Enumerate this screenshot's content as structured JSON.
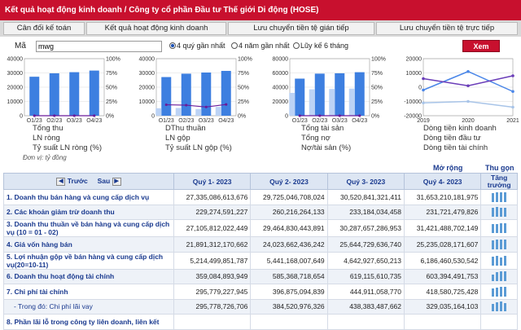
{
  "title": "Kết quả hoạt động kinh doanh / Công ty cổ phần Đầu tư Thế giới Di động (HOSE)",
  "tabs": [
    "Cân đối kế toán",
    "Kết quả hoạt động kinh doanh",
    "Lưu chuyển tiền tệ gián tiếp",
    "Lưu chuyển tiền tệ trực tiếp"
  ],
  "filter": {
    "label": "Mã",
    "code": "mwg",
    "options": [
      "4 quý gần nhất",
      "4 năm gần nhất",
      "Lũy kế 6 tháng"
    ],
    "selected": 0,
    "button": "Xem"
  },
  "charts": [
    {
      "legend": [
        "Tổng thu",
        "LN ròng",
        "Tỷ suất LN ròng (%)"
      ],
      "y_left": [
        "40000",
        "30000",
        "20000",
        "10000",
        "0"
      ],
      "y_right": [
        "100%",
        "75%",
        "50%",
        "25%",
        "0%"
      ],
      "x": [
        "Q1/23",
        "Q2/23",
        "Q3/23",
        "Q4/23"
      ],
      "bars": [
        27335,
        29725,
        30520,
        31653
      ],
      "bars2": [
        0,
        0,
        0,
        0
      ],
      "line": [
        0,
        0,
        0,
        0
      ]
    },
    {
      "legend": [
        "DThu thuần",
        "LN gộp",
        "Tỷ suất LN gộp (%)"
      ],
      "y_left": [
        "40000",
        "30000",
        "20000",
        "10000",
        "0"
      ],
      "y_right": [
        "100%",
        "75%",
        "50%",
        "25%",
        "0%"
      ],
      "x": [
        "Q1/23",
        "Q2/23",
        "Q3/23",
        "Q4/23"
      ],
      "bars": [
        27106,
        29465,
        30288,
        31421
      ],
      "bars2": [
        5214,
        5441,
        4643,
        6186
      ],
      "line": [
        19.2,
        18.5,
        15.3,
        19.7
      ]
    },
    {
      "legend": [
        "Tổng tài sản",
        "Tổng nợ",
        "Nợ/tài sản (%)"
      ],
      "y_left": [
        "80000",
        "60000",
        "40000",
        "20000",
        "0"
      ],
      "y_right": [
        "100%",
        "75%",
        "50%",
        "25%",
        "0%"
      ],
      "x": [
        "Q1/23",
        "Q2/23",
        "Q3/23",
        "Q4/23"
      ],
      "bars": [
        52000,
        59000,
        59500,
        61000
      ],
      "bars2": [
        32000,
        37000,
        37500,
        38000
      ],
      "line": [
        0,
        0,
        0,
        0
      ]
    },
    {
      "legend": [
        "Dòng tiền kinh doanh",
        "Dòng tiền đầu tư",
        "Dòng tiền tài chính"
      ],
      "y_left": [
        "20000",
        "10000",
        "0",
        "-10000",
        "-20000"
      ],
      "x": [
        "2019",
        "2020",
        "2021"
      ],
      "series": [
        [
          -2000,
          11000,
          -3000
        ],
        [
          6000,
          1000,
          8000
        ],
        [
          -11000,
          -10000,
          -14000
        ]
      ],
      "colors": [
        "#4a86e8",
        "#6a3db8",
        "#a8c4e8"
      ]
    }
  ],
  "unit_note": "Đơn vị: tỷ đồng",
  "expand": "Mở rộng",
  "growth": "Thu gọn",
  "table": {
    "nav_prev": "Trước",
    "nav_next": "Sau",
    "headers": [
      "Quý 1- 2023",
      "Quý 2- 2023",
      "Quý 3- 2023",
      "Quý 4- 2023",
      "Tăng trưởng"
    ],
    "rows": [
      {
        "name": "1. Doanh thu bán hàng và cung cấp dịch vụ",
        "values": [
          "27,335,086,613,676",
          "29,725,046,708,024",
          "30,520,841,321,411",
          "31,653,210,181,975"
        ],
        "sub": false
      },
      {
        "name": "2. Các khoản giảm trừ doanh thu",
        "values": [
          "229,274,591,227",
          "260,216,264,133",
          "233,184,034,458",
          "231,721,479,826"
        ],
        "sub": false
      },
      {
        "name": "3. Doanh thu thuần về bán hàng và cung cấp dịch vụ (10 = 01 - 02)",
        "values": [
          "27,105,812,022,449",
          "29,464,830,443,891",
          "30,287,657,286,953",
          "31,421,488,702,149"
        ],
        "sub": false
      },
      {
        "name": "4. Giá vốn hàng bán",
        "values": [
          "21,891,312,170,662",
          "24,023,662,436,242",
          "25,644,729,636,740",
          "25,235,028,171,607"
        ],
        "sub": false
      },
      {
        "name": "5. Lợi nhuận gộp về bán hàng và cung cấp dịch vụ(20=10-11)",
        "values": [
          "5,214,499,851,787",
          "5,441,168,007,649",
          "4,642,927,650,213",
          "6,186,460,530,542"
        ],
        "sub": false
      },
      {
        "name": "6. Doanh thu hoạt động tài chính",
        "values": [
          "359,084,893,949",
          "585,368,718,654",
          "619,115,610,735",
          "603,394,491,753"
        ],
        "sub": false
      },
      {
        "name": "7. Chi phí tài chính",
        "values": [
          "295,779,227,945",
          "396,875,094,839",
          "444,911,058,770",
          "418,580,725,428"
        ],
        "sub": false
      },
      {
        "name": "- Trong đó: Chi phí lãi vay",
        "values": [
          "295,778,726,706",
          "384,520,976,326",
          "438,383,487,662",
          "329,035,164,103"
        ],
        "sub": true
      },
      {
        "name": "8. Phần lãi lỗ trong công ty liên doanh, liên kết",
        "values": [
          "",
          "",
          "",
          ""
        ],
        "sub": false
      }
    ]
  }
}
